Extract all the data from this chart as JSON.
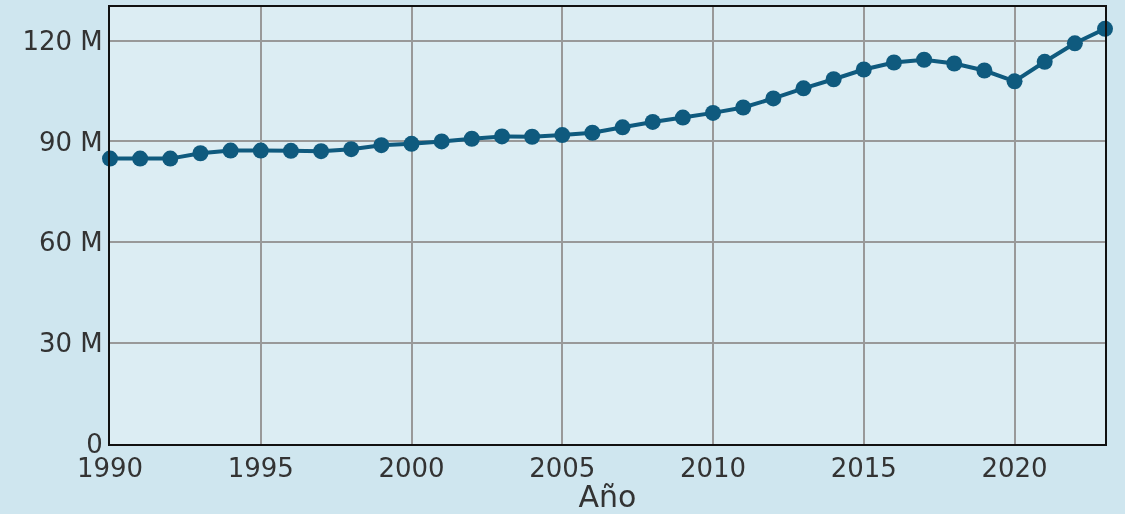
{
  "chart_data": {
    "type": "line",
    "xlabel": "Año",
    "x": [
      1990,
      1991,
      1992,
      1993,
      1994,
      1995,
      1996,
      1997,
      1998,
      1999,
      2000,
      2001,
      2002,
      2003,
      2004,
      2005,
      2006,
      2007,
      2008,
      2009,
      2010,
      2011,
      2012,
      2013,
      2014,
      2015,
      2016,
      2017,
      2018,
      2019,
      2020,
      2021,
      2022,
      2023
    ],
    "series": [
      {
        "color": "#0f5a7e",
        "values": [
          84.9,
          84.9,
          84.9,
          86.5,
          87.3,
          87.3,
          87.2,
          87.1,
          87.7,
          88.9,
          89.3,
          90.0,
          90.8,
          91.5,
          91.4,
          91.9,
          92.6,
          94.2,
          95.8,
          97.1,
          98.5,
          100.1,
          102.8,
          105.8,
          108.5,
          111.4,
          113.5,
          114.3,
          113.2,
          111.1,
          107.9,
          113.7,
          119.2,
          123.5
        ]
      }
    ],
    "xlim": [
      1990,
      2023
    ],
    "xticks": [
      1990,
      1995,
      2000,
      2005,
      2010,
      2015,
      2020
    ],
    "ylim": [
      0,
      130
    ],
    "yticks": [
      0,
      {
        "value": 30,
        "label": "30 M"
      },
      {
        "value": 60,
        "label": "60 M"
      },
      {
        "value": 90,
        "label": "90 M"
      },
      {
        "value": 120,
        "label": "120 M"
      }
    ],
    "grid": true,
    "marker": "circle",
    "line_style": "solid",
    "legend": false
  }
}
